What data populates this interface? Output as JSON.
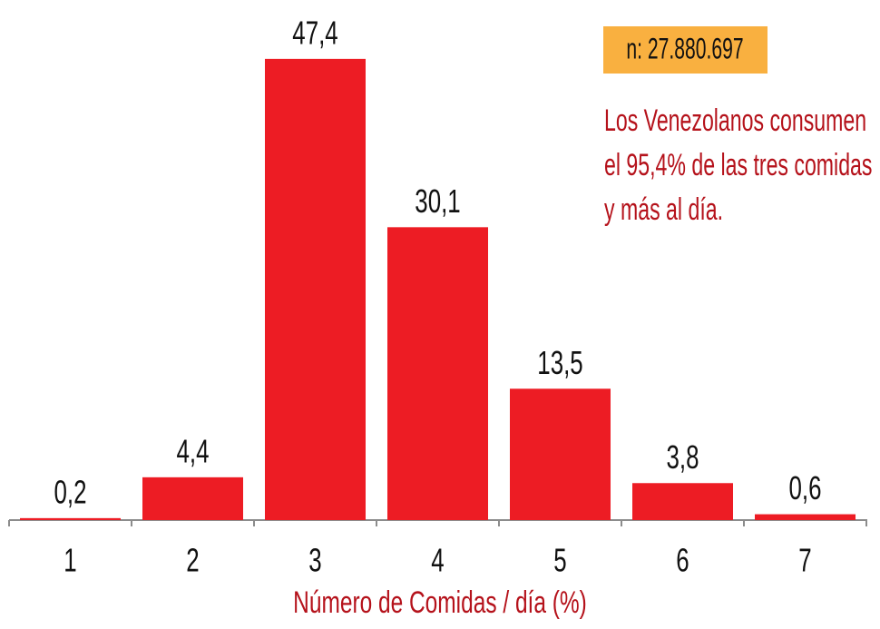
{
  "chart_data": {
    "type": "bar",
    "categories": [
      "1",
      "2",
      "3",
      "4",
      "5",
      "6",
      "7"
    ],
    "values": [
      0.2,
      4.4,
      47.4,
      30.1,
      13.5,
      3.8,
      0.6
    ],
    "value_labels": [
      "0,2",
      "4,4",
      "47,4",
      "30,1",
      "13,5",
      "3,8",
      "0,6"
    ],
    "color": "#ed1c24",
    "x_label": "Número de Comidas / día (%)",
    "annotations": {
      "sample": "n: 27.880.697",
      "note": [
        "Los Venezolanos consumen",
        "el 95,4% de las tres comidas",
        "y más al día."
      ]
    }
  }
}
